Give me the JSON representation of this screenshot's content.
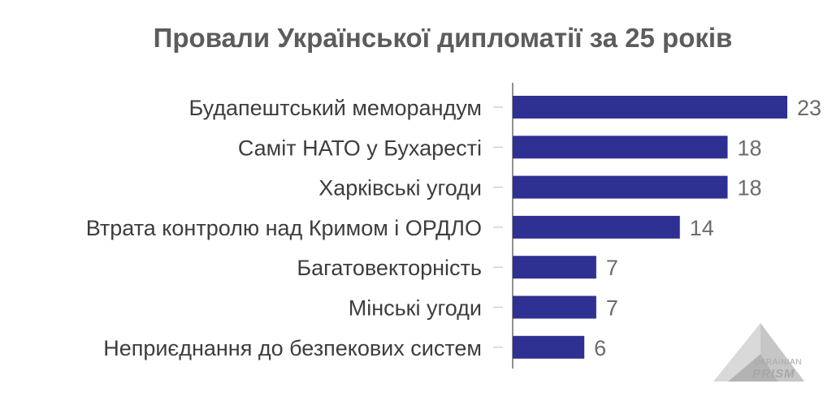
{
  "chart_data": {
    "type": "bar",
    "orientation": "horizontal",
    "title": "Провали Української дипломатії за 25 років",
    "categories": [
      "Будапештський меморандум",
      "Саміт НАТО у Бухаресті",
      "Харківські угоди",
      "Втрата контролю над Кримом і ОРДЛО",
      "Багатовекторність",
      "Мінські угоди",
      "Неприєднання до безпекових систем"
    ],
    "values": [
      23,
      18,
      18,
      14,
      7,
      7,
      6
    ],
    "xlim": [
      0,
      23
    ],
    "bar_color": "#2e3192",
    "grid": false,
    "legend": "none"
  },
  "logo": {
    "line1": "UKRAINIAN",
    "line2": "PRISM"
  }
}
